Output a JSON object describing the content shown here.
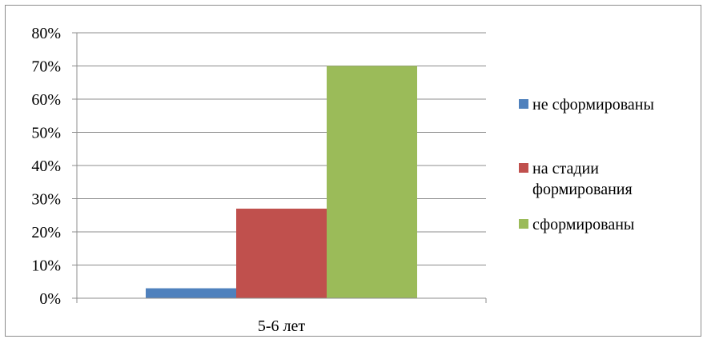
{
  "chart_data": {
    "type": "bar",
    "categories": [
      "5-6 лет"
    ],
    "series": [
      {
        "name": "не сформированы",
        "values": [
          3
        ],
        "color": "#4f81bd"
      },
      {
        "name": "на стадии формирования",
        "values": [
          27
        ],
        "color": "#c0504d"
      },
      {
        "name": "сформированы",
        "values": [
          70
        ],
        "color": "#9bbb59"
      }
    ],
    "ylim": [
      0,
      80
    ],
    "yticks": [
      0,
      10,
      20,
      30,
      40,
      50,
      60,
      70,
      80
    ],
    "ytick_labels": [
      "0%",
      "10%",
      "20%",
      "30%",
      "40%",
      "50%",
      "60%",
      "70%",
      "80%"
    ],
    "grid": true,
    "legend_position": "right"
  }
}
